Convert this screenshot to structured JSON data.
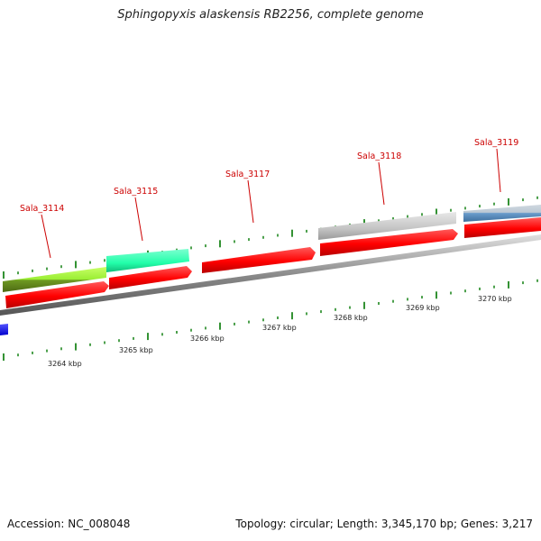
{
  "title": "Sphingopyxis alaskensis RB2256, complete genome",
  "footer": {
    "accession": "Accession: NC_008048",
    "summary": "Topology: circular; Length: 3,345,170 bp; Genes: 3,217"
  },
  "gene_labels": [
    "Sala_3114",
    "Sala_3115",
    "Sala_3117",
    "Sala_3118",
    "Sala_3119"
  ],
  "kbp_labels": [
    "3264 kbp",
    "3265 kbp",
    "3266 kbp",
    "3267 kbp",
    "3268 kbp",
    "3269 kbp",
    "3270 kbp"
  ],
  "colors": {
    "cds": "#ff0000",
    "feature_lime": "#99ee33",
    "feature_aqua": "#22ffaa",
    "feature_grey": "#c4c4c4",
    "feature_steel": "#5a8fc0",
    "feature_blue": "#0000ff",
    "backbone": "#8a8a8a",
    "tick": "#007700",
    "label_line": "#cc0000"
  }
}
